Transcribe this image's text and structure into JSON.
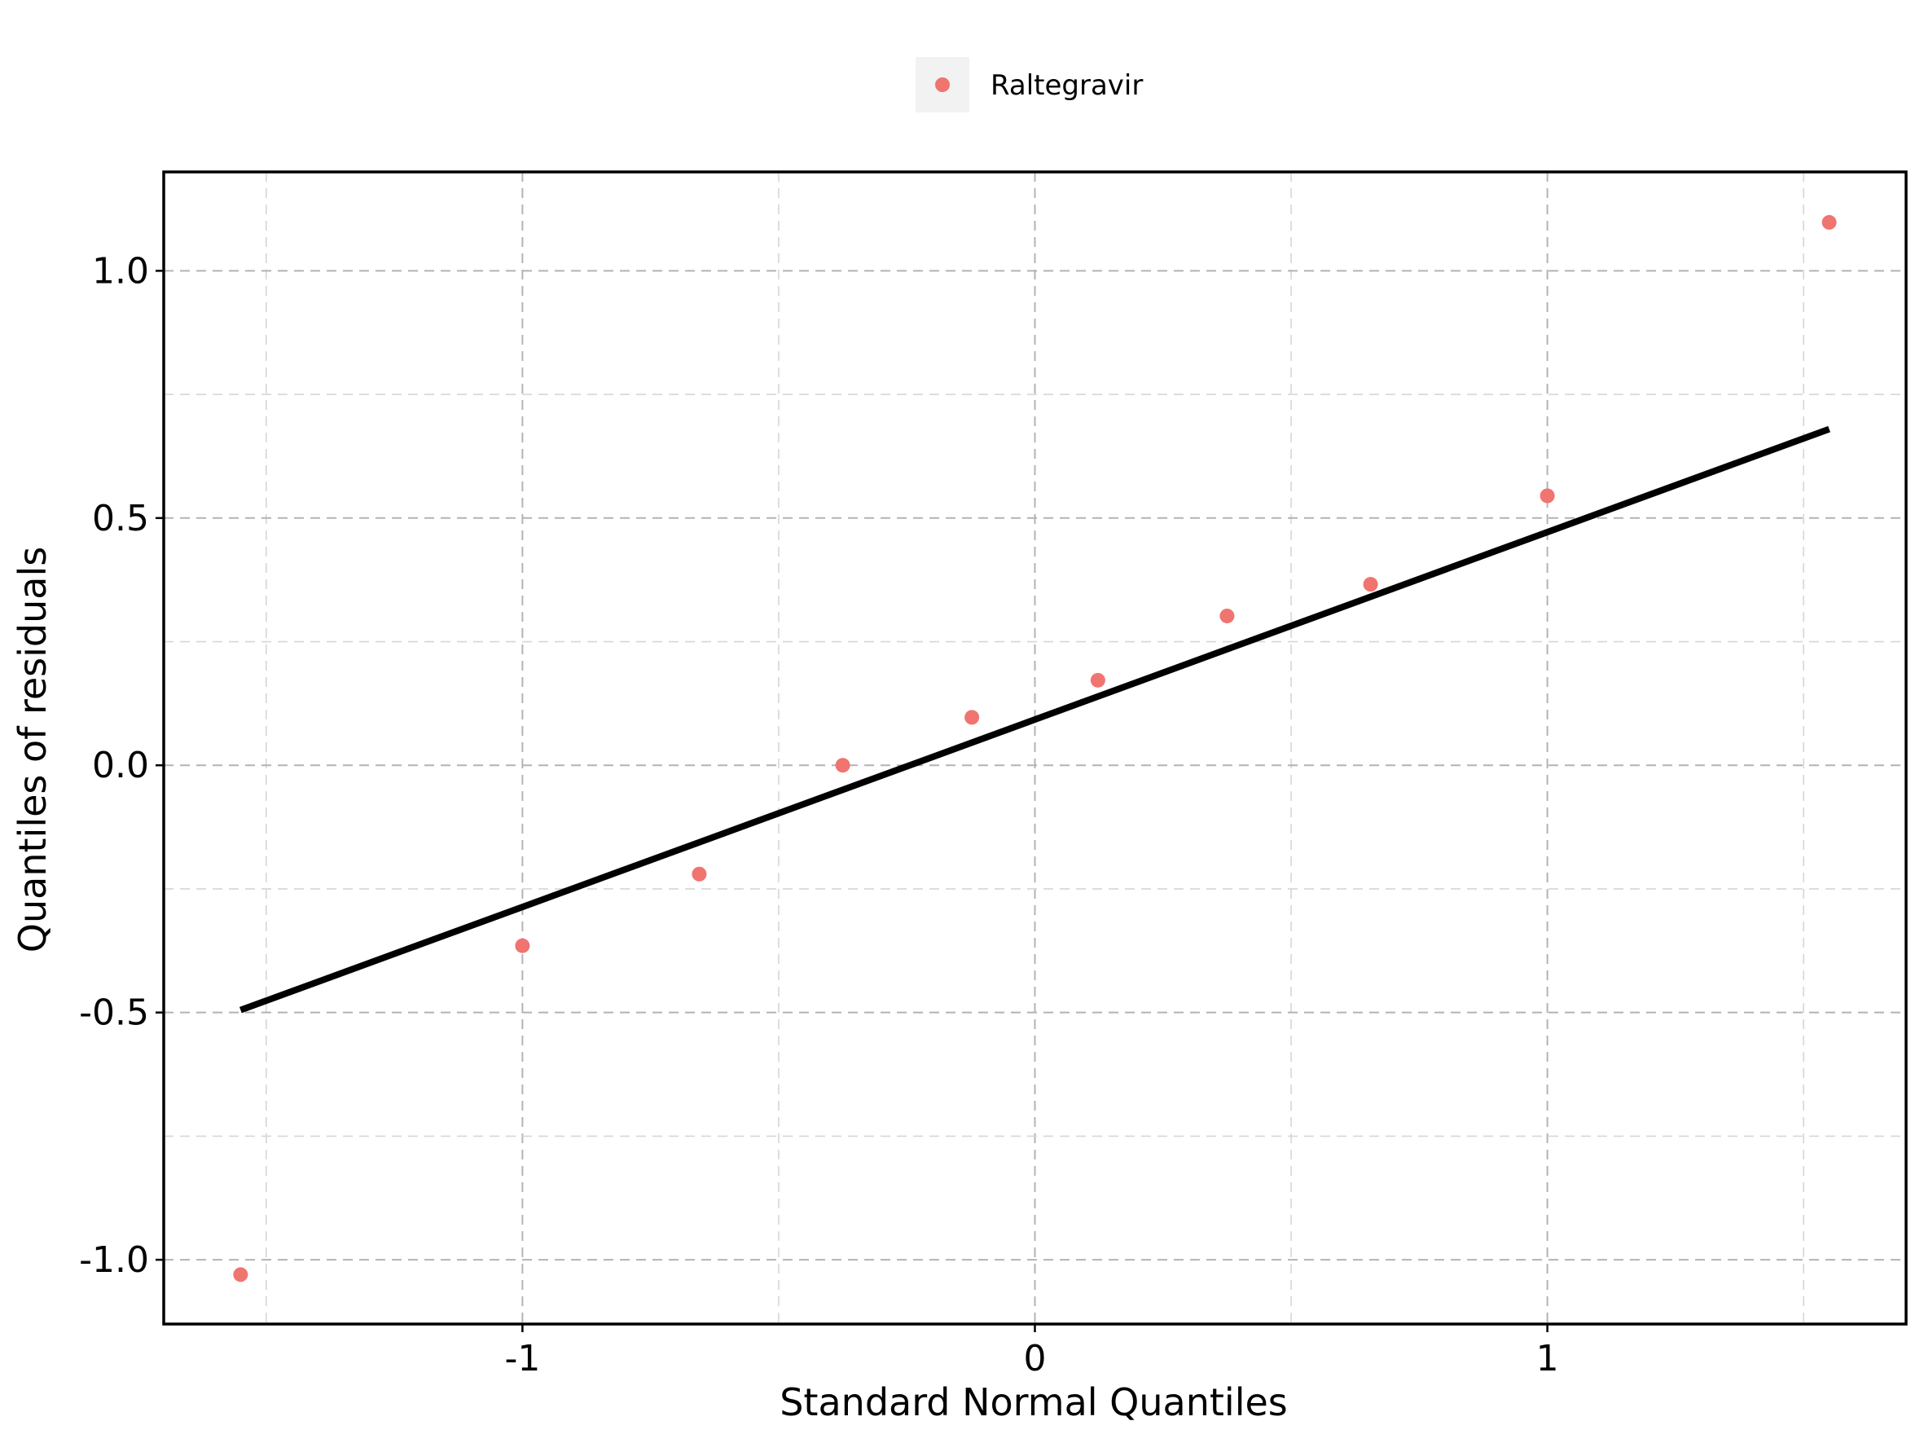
{
  "chart_data": {
    "type": "scatter",
    "xlabel": "Standard Normal Quantiles",
    "ylabel": "Quantiles of residuals",
    "xlim": [
      -1.7,
      1.7
    ],
    "ylim": [
      -1.13,
      1.2
    ],
    "x_major_ticks": [
      -1,
      0,
      1
    ],
    "x_minor_ticks": [
      -1.5,
      -0.5,
      0.5,
      1.5
    ],
    "x_tick_labels": [
      "-1",
      "0",
      "1"
    ],
    "y_major_ticks": [
      -1.0,
      -0.5,
      0.0,
      0.5,
      1.0
    ],
    "y_minor_ticks": [
      -0.75,
      -0.25,
      0.25,
      0.75
    ],
    "y_tick_labels": [
      "-1.0",
      "-0.5",
      "0.0",
      "0.5",
      "1.0"
    ],
    "grid": true,
    "legend": {
      "position": "top-center",
      "entries": [
        "Raltegravir"
      ]
    },
    "series": [
      {
        "name": "Raltegravir",
        "color": "#f07470",
        "x": [
          -1.55,
          -1.0,
          -0.655,
          -0.375,
          -0.123,
          0.123,
          0.375,
          0.655,
          1.0,
          1.55
        ],
        "y": [
          -1.03,
          -0.365,
          -0.22,
          0.0,
          0.097,
          0.172,
          0.302,
          0.366,
          0.545,
          1.098
        ]
      }
    ],
    "reference_line": {
      "x": [
        -1.55,
        1.55
      ],
      "y": [
        -0.495,
        0.68
      ],
      "color": "#000000"
    }
  }
}
